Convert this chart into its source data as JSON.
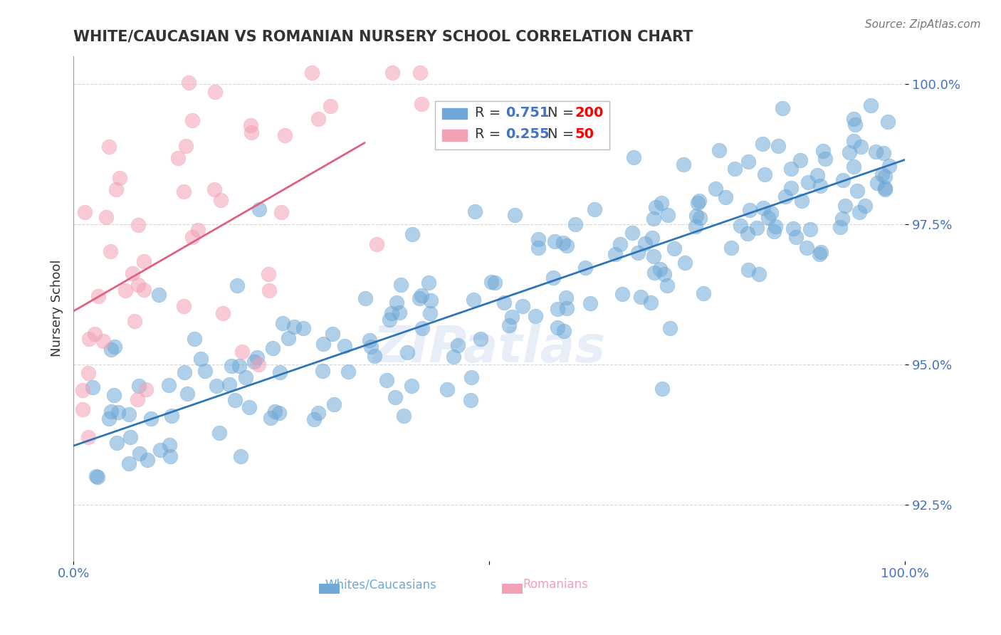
{
  "title": "WHITE/CAUCASIAN VS ROMANIAN NURSERY SCHOOL CORRELATION CHART",
  "source": "Source: ZipAtlas.com",
  "ylabel": "Nursery School",
  "xlabel": "",
  "watermark": "ZIPatlas",
  "blue_R": 0.751,
  "blue_N": 200,
  "pink_R": 0.255,
  "pink_N": 50,
  "blue_color": "#6fa8d6",
  "pink_color": "#f4a0b5",
  "blue_line_color": "#2e75b6",
  "pink_line_color": "#e06080",
  "title_color": "#333333",
  "tick_color": "#4472c4",
  "ylabel_color": "#333333",
  "grid_color": "#cccccc",
  "legend_R_color": "#4472c4",
  "legend_N_color": "#ff0000",
  "background": "#ffffff",
  "xlim": [
    0,
    1
  ],
  "ylim": [
    0.915,
    1.005
  ],
  "yticks": [
    0.925,
    0.95,
    0.975,
    1.0
  ],
  "ytick_labels": [
    "92.5%",
    "95.0%",
    "97.5%",
    "100.0%"
  ],
  "xtick_labels": [
    "0.0%",
    "100.0%"
  ],
  "xticks": [
    0.0,
    1.0
  ],
  "blue_trend_x": [
    0.0,
    1.0
  ],
  "blue_trend_y": [
    0.9355,
    0.9865
  ],
  "pink_trend_x": [
    0.0,
    0.35
  ],
  "pink_trend_y": [
    0.9595,
    0.9895
  ]
}
